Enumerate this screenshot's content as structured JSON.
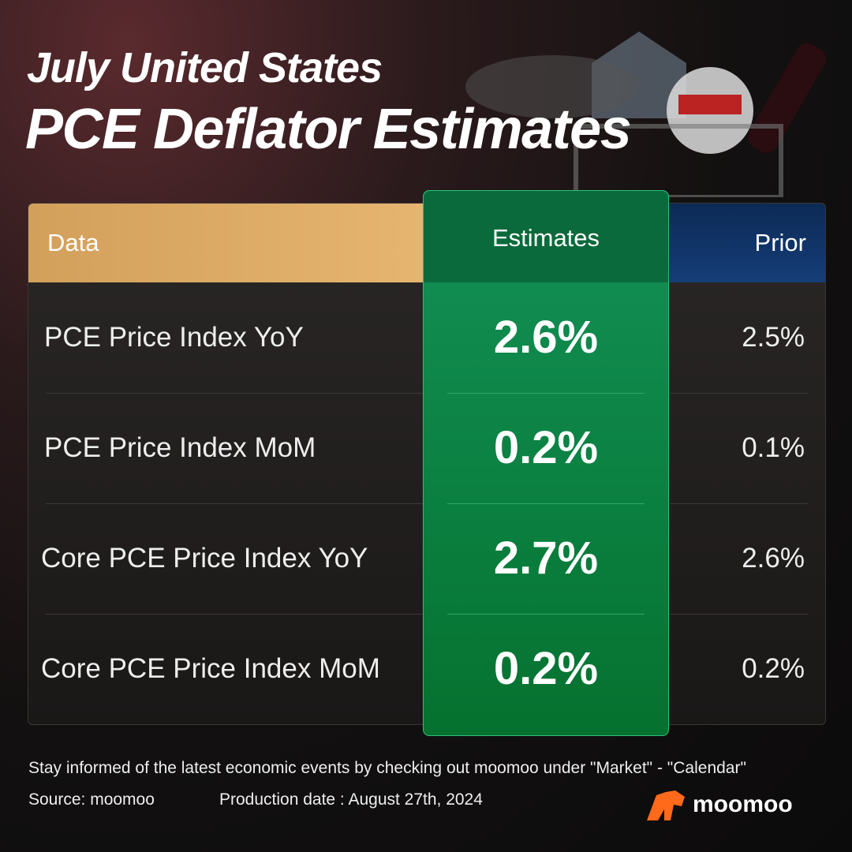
{
  "header": {
    "line1": "July United States",
    "line2": "PCE Deflator Estimates"
  },
  "table": {
    "columns": [
      "Data",
      "Estimates",
      "Prior"
    ],
    "rows": [
      [
        "PCE Price Index YoY",
        "2.6%",
        "2.5%"
      ],
      [
        "PCE Price Index MoM",
        "0.2%",
        "0.1%"
      ],
      [
        "Core PCE Price Index YoY",
        "2.7%",
        "2.6%"
      ],
      [
        "Core PCE Price Index MoM",
        "0.2%",
        "0.2%"
      ]
    ]
  },
  "footer": {
    "note": "Stay informed of the latest economic events by checking out moomoo under \"Market\" - \"Calendar\"",
    "source": "Source: moomoo",
    "production_date": "Production date : August 27th, 2024",
    "brand": "moomoo"
  }
}
